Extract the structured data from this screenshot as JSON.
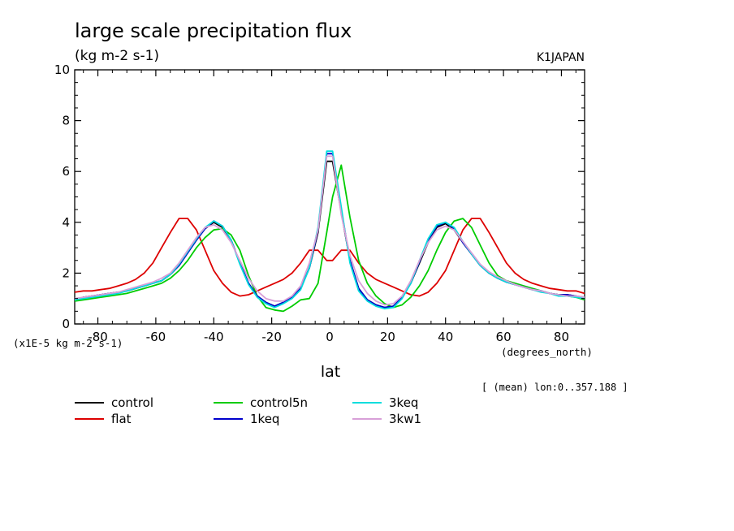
{
  "chart_data": {
    "type": "line",
    "title": "large scale precipitation flux",
    "subtitle": "(kg m-2 s-1)",
    "source_tag": "K1JAPAN",
    "xlabel": "lat",
    "x_units": "(degrees_north)",
    "y_scale_label": "(x1E-5 kg m-2 s-1)",
    "region_note": "[ (mean) lon:0..357.188 ]",
    "xlim": [
      -88,
      88
    ],
    "ylim": [
      0,
      10
    ],
    "x_ticks": [
      -80,
      -60,
      -40,
      -20,
      0,
      20,
      40,
      60,
      80
    ],
    "x_tick_labels": [
      "-80",
      "-60",
      "-40",
      "-20",
      "0",
      "20",
      "40",
      "60",
      "80"
    ],
    "y_ticks": [
      0,
      2,
      4,
      6,
      8,
      10
    ],
    "y_tick_labels": [
      "0",
      "2",
      "4",
      "6",
      "8",
      "10"
    ],
    "grid": false,
    "legend_position": "bottom",
    "x": [
      -88,
      -85,
      -82,
      -79,
      -76,
      -73,
      -70,
      -67,
      -64,
      -61,
      -58,
      -55,
      -52,
      -49,
      -46,
      -43,
      -40,
      -37,
      -34,
      -31,
      -28,
      -25,
      -22,
      -19,
      -16,
      -13,
      -10,
      -7,
      -4,
      -1,
      1,
      4,
      7,
      10,
      13,
      16,
      19,
      22,
      25,
      28,
      31,
      34,
      37,
      40,
      43,
      46,
      49,
      52,
      55,
      58,
      61,
      64,
      67,
      70,
      73,
      76,
      79,
      82,
      85,
      88
    ],
    "series": [
      {
        "name": "control",
        "color": "#000000",
        "values": [
          0.95,
          1.05,
          1.1,
          1.15,
          1.2,
          1.25,
          1.3,
          1.4,
          1.5,
          1.6,
          1.7,
          1.95,
          2.3,
          2.8,
          3.3,
          3.75,
          4.0,
          3.8,
          3.3,
          2.4,
          1.6,
          1.1,
          0.85,
          0.7,
          0.85,
          1.05,
          1.4,
          2.2,
          3.6,
          6.4,
          6.4,
          4.4,
          2.5,
          1.4,
          0.95,
          0.75,
          0.65,
          0.7,
          1.05,
          1.6,
          2.4,
          3.2,
          3.8,
          3.95,
          3.7,
          3.2,
          2.75,
          2.3,
          2.0,
          1.8,
          1.65,
          1.55,
          1.45,
          1.35,
          1.3,
          1.2,
          1.15,
          1.15,
          1.1,
          1.0
        ]
      },
      {
        "name": "flat",
        "color": "#dd0000",
        "values": [
          1.25,
          1.3,
          1.3,
          1.35,
          1.4,
          1.5,
          1.6,
          1.75,
          2.0,
          2.4,
          3.0,
          3.6,
          4.15,
          4.15,
          3.7,
          2.9,
          2.1,
          1.6,
          1.25,
          1.1,
          1.15,
          1.3,
          1.45,
          1.6,
          1.75,
          2.0,
          2.4,
          2.9,
          2.9,
          2.5,
          2.5,
          2.9,
          2.9,
          2.4,
          2.0,
          1.75,
          1.6,
          1.45,
          1.3,
          1.15,
          1.1,
          1.25,
          1.6,
          2.1,
          2.9,
          3.7,
          4.15,
          4.15,
          3.6,
          3.0,
          2.4,
          2.0,
          1.75,
          1.6,
          1.5,
          1.4,
          1.35,
          1.3,
          1.3,
          1.2
        ]
      },
      {
        "name": "control5n",
        "color": "#00cc00",
        "values": [
          0.9,
          0.95,
          1.0,
          1.05,
          1.1,
          1.15,
          1.2,
          1.3,
          1.4,
          1.5,
          1.6,
          1.8,
          2.1,
          2.5,
          3.0,
          3.4,
          3.7,
          3.75,
          3.5,
          2.9,
          1.9,
          1.1,
          0.65,
          0.55,
          0.5,
          0.7,
          0.95,
          1.0,
          1.6,
          3.6,
          5.0,
          6.25,
          4.2,
          2.5,
          1.6,
          1.1,
          0.8,
          0.65,
          0.75,
          1.05,
          1.5,
          2.1,
          2.9,
          3.6,
          4.05,
          4.15,
          3.8,
          3.1,
          2.4,
          1.9,
          1.7,
          1.6,
          1.5,
          1.4,
          1.3,
          1.2,
          1.15,
          1.1,
          1.05,
          0.95
        ]
      },
      {
        "name": "1keq",
        "color": "#0000cc",
        "values": [
          0.95,
          1.05,
          1.1,
          1.15,
          1.2,
          1.25,
          1.3,
          1.4,
          1.5,
          1.6,
          1.7,
          1.95,
          2.3,
          2.8,
          3.3,
          3.75,
          4.05,
          3.85,
          3.3,
          2.4,
          1.6,
          1.1,
          0.85,
          0.7,
          0.85,
          1.05,
          1.4,
          2.2,
          3.7,
          6.7,
          6.7,
          4.5,
          2.5,
          1.4,
          0.95,
          0.75,
          0.65,
          0.7,
          1.05,
          1.6,
          2.45,
          3.3,
          3.85,
          4.0,
          3.75,
          3.2,
          2.75,
          2.3,
          2.0,
          1.8,
          1.65,
          1.55,
          1.45,
          1.35,
          1.3,
          1.2,
          1.15,
          1.15,
          1.1,
          1.05
        ]
      },
      {
        "name": "3keq",
        "color": "#00dddd",
        "values": [
          0.95,
          1.0,
          1.05,
          1.1,
          1.15,
          1.2,
          1.3,
          1.4,
          1.5,
          1.6,
          1.7,
          1.95,
          2.35,
          2.85,
          3.35,
          3.8,
          4.05,
          3.85,
          3.3,
          2.35,
          1.55,
          1.05,
          0.8,
          0.65,
          0.8,
          1.0,
          1.35,
          2.2,
          3.8,
          6.8,
          6.8,
          4.6,
          2.4,
          1.3,
          0.9,
          0.7,
          0.6,
          0.65,
          1.0,
          1.6,
          2.5,
          3.35,
          3.9,
          4.0,
          3.8,
          3.25,
          2.75,
          2.3,
          2.0,
          1.8,
          1.65,
          1.55,
          1.45,
          1.35,
          1.25,
          1.2,
          1.1,
          1.1,
          1.05,
          1.0
        ]
      },
      {
        "name": "3kw1",
        "color": "#d8a0d8",
        "values": [
          1.0,
          1.05,
          1.1,
          1.15,
          1.2,
          1.25,
          1.35,
          1.45,
          1.55,
          1.65,
          1.8,
          2.0,
          2.4,
          2.9,
          3.4,
          3.8,
          3.9,
          3.7,
          3.2,
          2.5,
          1.8,
          1.3,
          1.0,
          0.9,
          0.9,
          1.1,
          1.5,
          2.4,
          3.7,
          6.6,
          6.6,
          4.3,
          2.7,
          1.7,
          1.2,
          0.9,
          0.75,
          0.8,
          1.1,
          1.7,
          2.5,
          3.2,
          3.7,
          3.85,
          3.7,
          3.25,
          2.8,
          2.35,
          2.05,
          1.85,
          1.7,
          1.55,
          1.45,
          1.35,
          1.3,
          1.2,
          1.15,
          1.1,
          1.1,
          1.05
        ]
      }
    ]
  }
}
